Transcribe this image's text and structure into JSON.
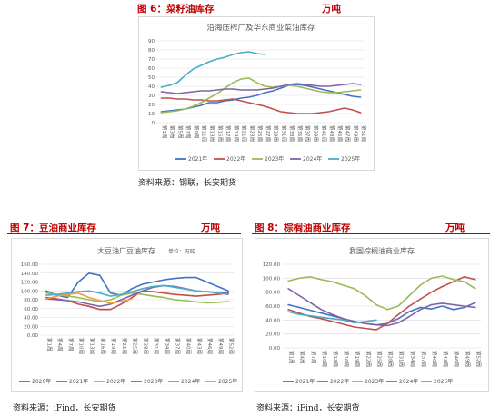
{
  "figures": [
    {
      "id": "rapeseed",
      "header_title": "图 6：菜籽油库存",
      "header_unit": "万吨",
      "source": "资料来源：钢联，长安期货"
    },
    {
      "id": "soy",
      "header_title": "图 7：豆油商业库存",
      "header_unit": "万吨",
      "source": "资料来源：iFind，长安期货"
    },
    {
      "id": "palm",
      "header_title": "图 8：棕榈油商业库存",
      "header_unit": "万吨",
      "source": "资料来源：iFind，长安期货"
    }
  ],
  "chart_data": [
    {
      "type": "line",
      "title": "沿海压榨厂及华东商业菜油库存",
      "ylim": [
        0,
        90
      ],
      "yticks": [
        0,
        10,
        20,
        30,
        40,
        50,
        60,
        70,
        80,
        90
      ],
      "categories": [
        "第1周",
        "第3周",
        "第5周",
        "第7周",
        "第9周",
        "第11周",
        "第13周",
        "第15周",
        "第17周",
        "第19周",
        "第21周",
        "第23周",
        "第25周",
        "第27周",
        "第29周",
        "第31周",
        "第33周",
        "第35周",
        "第37周",
        "第39周",
        "第41周",
        "第43周",
        "第45周",
        "第47周",
        "第49周",
        "第51周"
      ],
      "grid": true,
      "legend": "bottom",
      "series": [
        {
          "name": "2021年",
          "color": "#4472c4",
          "values": [
            12,
            13,
            14,
            15,
            17,
            19,
            22,
            22,
            24,
            25,
            27,
            28,
            30,
            33,
            35,
            38,
            41,
            42,
            41,
            39,
            37,
            35,
            33,
            31,
            29,
            28
          ]
        },
        {
          "name": "2022年",
          "color": "#c0504d",
          "values": [
            27,
            27,
            26,
            26,
            25,
            25,
            24,
            24,
            25,
            26,
            24,
            22,
            20,
            18,
            15,
            12,
            11,
            10,
            10,
            10,
            11,
            12,
            14,
            16,
            14,
            11
          ]
        },
        {
          "name": "2023年",
          "color": "#9bbb59",
          "values": [
            11,
            12,
            13,
            15,
            18,
            22,
            27,
            32,
            38,
            44,
            48,
            49,
            44,
            40,
            39,
            40,
            41,
            40,
            38,
            36,
            34,
            33,
            33,
            34,
            35,
            36
          ]
        },
        {
          "name": "2024年",
          "color": "#8064a2",
          "values": [
            34,
            33,
            32,
            33,
            34,
            35,
            35,
            36,
            37,
            37,
            36,
            36,
            36,
            37,
            38,
            40,
            42,
            43,
            42,
            41,
            40,
            40,
            41,
            42,
            43,
            42
          ]
        },
        {
          "name": "2025年",
          "color": "#4bacc6",
          "values": [
            39,
            41,
            44,
            52,
            59,
            63,
            67,
            70,
            72,
            75,
            77,
            78,
            76,
            75,
            null,
            null,
            null,
            null,
            null,
            null,
            null,
            null,
            null,
            null,
            null,
            null
          ]
        }
      ]
    },
    {
      "type": "line",
      "title": "大豆油厂豆油库存",
      "subtitle": "单位：万吨",
      "ylim": [
        0,
        160
      ],
      "yticks": [
        "0.00",
        "20.00",
        "40.00",
        "60.00",
        "80.00",
        "100.00",
        "120.00",
        "140.00",
        "160.00"
      ],
      "categories": [
        "第1周",
        "第4周",
        "第7周",
        "第10周",
        "第13周",
        "第16周",
        "第19周",
        "第22周",
        "第25周",
        "第28周",
        "第31周",
        "第34周",
        "第37周",
        "第40周",
        "第43周",
        "第46周",
        "第49周",
        "第52周"
      ],
      "grid": true,
      "legend": "bottom",
      "series": [
        {
          "name": "2020年",
          "color": "#4472c4",
          "values": [
            100,
            90,
            85,
            120,
            140,
            135,
            95,
            90,
            105,
            115,
            120,
            125,
            128,
            130,
            130,
            120,
            110,
            100
          ]
        },
        {
          "name": "2021年",
          "color": "#c0504d",
          "values": [
            85,
            82,
            78,
            70,
            65,
            58,
            58,
            70,
            85,
            100,
            98,
            95,
            92,
            90,
            88,
            90,
            92,
            95
          ]
        },
        {
          "name": "2022年",
          "color": "#9bbb59",
          "values": [
            95,
            92,
            88,
            85,
            80,
            75,
            80,
            90,
            95,
            92,
            88,
            85,
            80,
            78,
            75,
            73,
            74,
            76
          ]
        },
        {
          "name": "2023年",
          "color": "#8064a2",
          "values": [
            82,
            80,
            78,
            75,
            70,
            65,
            70,
            80,
            90,
            100,
            108,
            112,
            110,
            105,
            100,
            98,
            96,
            94
          ]
        },
        {
          "name": "2024年",
          "color": "#4bacc6",
          "values": [
            90,
            92,
            95,
            98,
            100,
            95,
            88,
            92,
            98,
            105,
            110,
            112,
            108,
            104,
            100,
            98,
            95,
            92
          ]
        },
        {
          "name": "2025年",
          "color": "#f79646",
          "values": [
            82,
            88,
            92,
            95,
            85,
            78,
            72,
            76,
            82,
            null,
            null,
            null,
            null,
            null,
            null,
            null,
            null,
            null
          ]
        }
      ]
    },
    {
      "type": "line",
      "title": "我国棕榈油商业库存",
      "ylim": [
        0,
        120
      ],
      "yticks": [
        "0.00",
        "20.00",
        "40.00",
        "60.00",
        "80.00",
        "100.00",
        "120.00"
      ],
      "categories": [
        "第1周",
        "第4周",
        "第7周",
        "第10周",
        "第13周",
        "第16周",
        "第19周",
        "第22周",
        "第25周",
        "第28周",
        "第31周",
        "第34周",
        "第37周",
        "第40周",
        "第43周",
        "第46周",
        "第49周",
        "第52周"
      ],
      "grid": true,
      "legend": "bottom",
      "series": [
        {
          "name": "2021年",
          "color": "#4472c4",
          "values": [
            62,
            58,
            54,
            50,
            46,
            42,
            38,
            35,
            33,
            35,
            42,
            52,
            58,
            56,
            60,
            55,
            58,
            65
          ]
        },
        {
          "name": "2022年",
          "color": "#c0504d",
          "values": [
            55,
            50,
            45,
            42,
            38,
            34,
            30,
            28,
            26,
            35,
            48,
            60,
            70,
            80,
            88,
            95,
            102,
            98
          ]
        },
        {
          "name": "2023年",
          "color": "#9bbb59",
          "values": [
            96,
            100,
            102,
            98,
            95,
            90,
            85,
            75,
            62,
            55,
            60,
            75,
            90,
            100,
            103,
            98,
            95,
            85
          ]
        },
        {
          "name": "2024年",
          "color": "#8064a2",
          "values": [
            85,
            75,
            65,
            55,
            48,
            42,
            38,
            35,
            33,
            32,
            36,
            45,
            55,
            62,
            64,
            62,
            60,
            58
          ]
        },
        {
          "name": "2025年",
          "color": "#4bacc6",
          "values": [
            52,
            48,
            46,
            44,
            42,
            40,
            36,
            38,
            40,
            null,
            null,
            null,
            null,
            null,
            null,
            null,
            null,
            null
          ]
        }
      ]
    }
  ]
}
